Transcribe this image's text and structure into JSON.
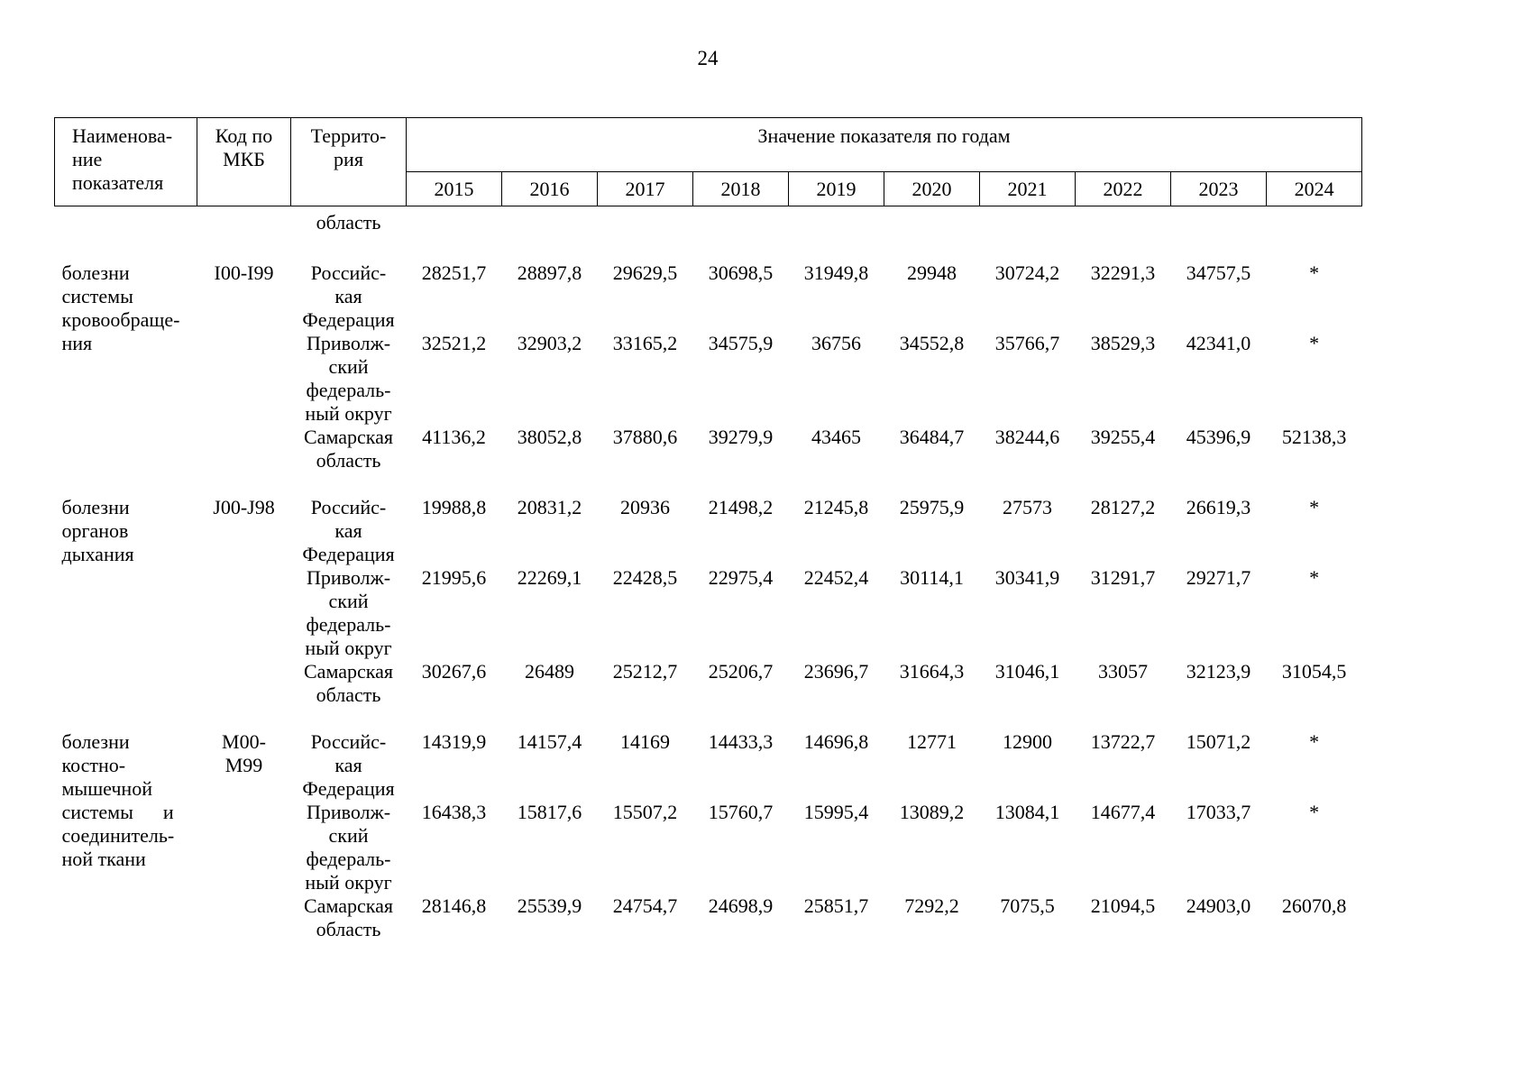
{
  "colors": {
    "text": "#000000",
    "background": "#ffffff",
    "border": "#000000"
  },
  "page": {
    "number": "24"
  },
  "table": {
    "header": {
      "indicator_name_lines": [
        "Наименова-",
        "ние",
        "показателя"
      ],
      "icd_code_lines": [
        "Код по",
        "МКБ"
      ],
      "territory_lines": [
        "Террито-",
        "рия"
      ],
      "years_group_label": "Значение показателя по годам",
      "years": [
        "2015",
        "2016",
        "2017",
        "2018",
        "2019",
        "2020",
        "2021",
        "2022",
        "2023",
        "2024"
      ]
    },
    "continuation_row": {
      "territory_lines": [
        "область"
      ]
    },
    "groups": [
      {
        "name_lines": [
          "болезни",
          "системы",
          "кровообраще-",
          "ния"
        ],
        "code_lines": [
          "I00-I99"
        ],
        "rows": [
          {
            "territory_lines": [
              "Российс-",
              "кая",
              "Федерация"
            ],
            "values": [
              "28251,7",
              "28897,8",
              "29629,5",
              "30698,5",
              "31949,8",
              "29948",
              "30724,2",
              "32291,3",
              "34757,5",
              "*"
            ]
          },
          {
            "territory_lines": [
              "Приволж-",
              "ский",
              "федераль-",
              "ный округ"
            ],
            "values": [
              "32521,2",
              "32903,2",
              "33165,2",
              "34575,9",
              "36756",
              "34552,8",
              "35766,7",
              "38529,3",
              "42341,0",
              "*"
            ]
          },
          {
            "territory_lines": [
              "Самарская",
              "область"
            ],
            "values": [
              "41136,2",
              "38052,8",
              "37880,6",
              "39279,9",
              "43465",
              "36484,7",
              "38244,6",
              "39255,4",
              "45396,9",
              "52138,3"
            ]
          }
        ]
      },
      {
        "name_lines": [
          "болезни",
          "органов",
          "дыхания"
        ],
        "code_lines": [
          "J00-J98"
        ],
        "rows": [
          {
            "territory_lines": [
              "Российс-",
              "кая",
              "Федерация"
            ],
            "values": [
              "19988,8",
              "20831,2",
              "20936",
              "21498,2",
              "21245,8",
              "25975,9",
              "27573",
              "28127,2",
              "26619,3",
              "*"
            ]
          },
          {
            "territory_lines": [
              "Приволж-",
              "ский",
              "федераль-",
              "ный округ"
            ],
            "values": [
              "21995,6",
              "22269,1",
              "22428,5",
              "22975,4",
              "22452,4",
              "30114,1",
              "30341,9",
              "31291,7",
              "29271,7",
              "*"
            ]
          },
          {
            "territory_lines": [
              "Самарская",
              "область"
            ],
            "values": [
              "30267,6",
              "26489",
              "25212,7",
              "25206,7",
              "23696,7",
              "31664,3",
              "31046,1",
              "33057",
              "32123,9",
              "31054,5"
            ]
          }
        ]
      },
      {
        "name_lines": [
          "болезни",
          "костно-",
          "мышечной",
          "системы      и",
          "соединитель-",
          "ной ткани"
        ],
        "code_lines": [
          "М00-",
          "М99"
        ],
        "rows": [
          {
            "territory_lines": [
              "Российс-",
              "кая",
              "Федерация"
            ],
            "values": [
              "14319,9",
              "14157,4",
              "14169",
              "14433,3",
              "14696,8",
              "12771",
              "12900",
              "13722,7",
              "15071,2",
              "*"
            ]
          },
          {
            "territory_lines": [
              "Приволж-",
              "ский",
              "федераль-",
              "ный округ"
            ],
            "values": [
              "16438,3",
              "15817,6",
              "15507,2",
              "15760,7",
              "15995,4",
              "13089,2",
              "13084,1",
              "14677,4",
              "17033,7",
              "*"
            ]
          },
          {
            "territory_lines": [
              "Самарская",
              "область"
            ],
            "values": [
              "28146,8",
              "25539,9",
              "24754,7",
              "24698,9",
              "25851,7",
              "7292,2",
              "7075,5",
              "21094,5",
              "24903,0",
              "26070,8"
            ]
          }
        ]
      }
    ]
  }
}
